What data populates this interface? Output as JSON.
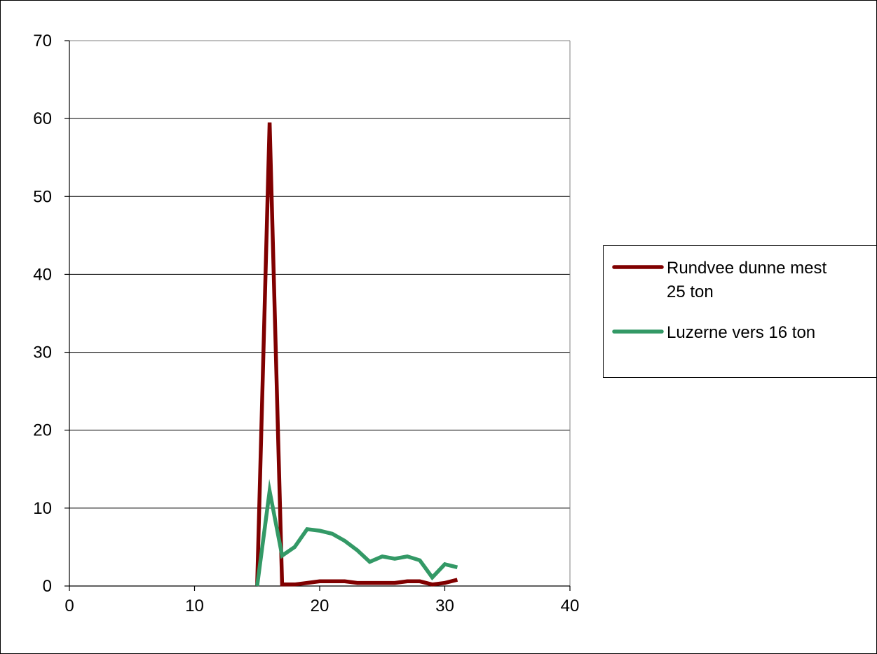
{
  "chart_data": {
    "type": "scatter",
    "title": "",
    "xlabel": "",
    "ylabel": "",
    "xlim": [
      0,
      40
    ],
    "ylim": [
      0,
      70
    ],
    "x_ticks": [
      0,
      10,
      20,
      30,
      40
    ],
    "y_ticks": [
      0,
      10,
      20,
      30,
      40,
      50,
      60,
      70
    ],
    "grid": "horizontal",
    "legend_position": "right",
    "series": [
      {
        "name": "Rundvee dunne mest 25 ton",
        "legend_lines": [
          "Rundvee dunne mest",
          "25 ton"
        ],
        "color": "#800000",
        "points": [
          [
            15,
            0
          ],
          [
            16,
            59.5
          ],
          [
            17,
            0.2
          ],
          [
            18,
            0.2
          ],
          [
            19,
            0.4
          ],
          [
            20,
            0.6
          ],
          [
            21,
            0.6
          ],
          [
            22,
            0.6
          ],
          [
            23,
            0.4
          ],
          [
            24,
            0.4
          ],
          [
            25,
            0.4
          ],
          [
            26,
            0.4
          ],
          [
            27,
            0.6
          ],
          [
            28,
            0.6
          ],
          [
            29,
            0.2
          ],
          [
            30,
            0.4
          ],
          [
            31,
            0.8
          ]
        ]
      },
      {
        "name": "Luzerne vers 16 ton",
        "legend_lines": [
          "Luzerne vers 16 ton"
        ],
        "color": "#339966",
        "points": [
          [
            15,
            0
          ],
          [
            16,
            12.2
          ],
          [
            17,
            3.9
          ],
          [
            18,
            5.0
          ],
          [
            19,
            7.3
          ],
          [
            20,
            7.1
          ],
          [
            21,
            6.7
          ],
          [
            22,
            5.8
          ],
          [
            23,
            4.6
          ],
          [
            24,
            3.1
          ],
          [
            25,
            3.8
          ],
          [
            26,
            3.5
          ],
          [
            27,
            3.8
          ],
          [
            28,
            3.3
          ],
          [
            29,
            1.1
          ],
          [
            30,
            2.8
          ],
          [
            31,
            2.4
          ]
        ]
      }
    ]
  }
}
